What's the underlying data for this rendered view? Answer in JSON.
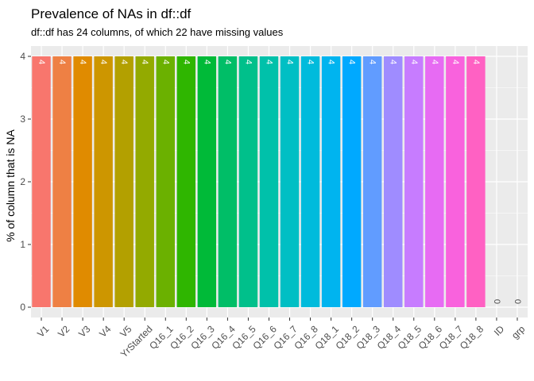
{
  "chart_data": {
    "type": "bar",
    "title": "Prevalence of NAs in df::df",
    "subtitle": "df::df has 24 columns, of which 22 have missing values",
    "xlabel": "",
    "ylabel": "% of column that is NA",
    "ylim": [
      0,
      4
    ],
    "yticks": [
      0,
      1,
      2,
      3,
      4
    ],
    "grid": true,
    "legend": "none",
    "categories": [
      "V1",
      "V2",
      "V3",
      "V4",
      "V5",
      "YrStarted",
      "Q16_1",
      "Q16_2",
      "Q16_3",
      "Q16_4",
      "Q16_5",
      "Q16_6",
      "Q16_7",
      "Q16_8",
      "Q18_1",
      "Q18_2",
      "Q18_3",
      "Q18_4",
      "Q18_5",
      "Q18_6",
      "Q18_7",
      "Q18_8",
      "ID",
      "grp"
    ],
    "values": [
      4,
      4,
      4,
      4,
      4,
      4,
      4,
      4,
      4,
      4,
      4,
      4,
      4,
      4,
      4,
      4,
      4,
      4,
      4,
      4,
      4,
      4,
      0,
      0
    ],
    "data_labels": [
      "4",
      "4",
      "4",
      "4",
      "4",
      "4",
      "4",
      "4",
      "4",
      "4",
      "4",
      "4",
      "4",
      "4",
      "4",
      "4",
      "4",
      "4",
      "4",
      "4",
      "4",
      "4",
      "0",
      "0"
    ],
    "colors": [
      "#F8766D",
      "#EE8044",
      "#E08B00",
      "#CD9600",
      "#B3A000",
      "#93AA00",
      "#6BB100",
      "#2FB600",
      "#00BA38",
      "#00BE67",
      "#00C08B",
      "#00C1AA",
      "#00BFC4",
      "#00BBDC",
      "#00B4EF",
      "#00A9FF",
      "#619CFF",
      "#9F8CFF",
      "#C77CFF",
      "#E76BF3",
      "#F962DD",
      "#FF61C3",
      "#FF66A8",
      "#FF6C91"
    ],
    "panel_background": "#EBEBEB",
    "grid_color": "#FFFFFF"
  }
}
